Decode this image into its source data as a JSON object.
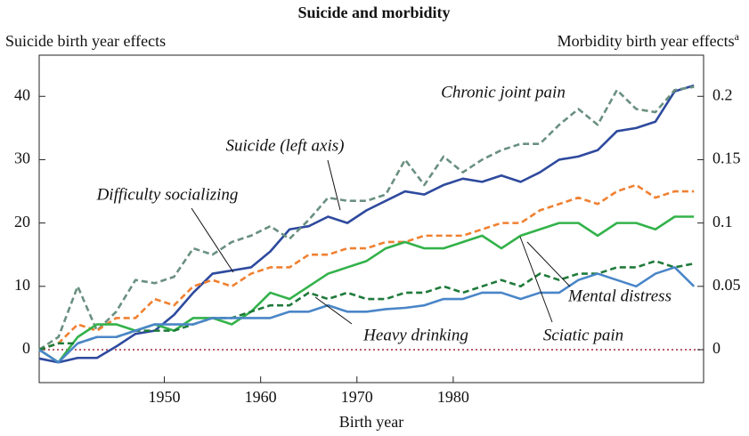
{
  "chart_data": {
    "type": "line",
    "title": "Suicide and morbidity",
    "ylabel": "Suicide birth year effects",
    "y2label": "Morbidity birth year effects",
    "y2label_note": "a",
    "xlabel": "Birth year",
    "x": [
      1937,
      1939,
      1941,
      1943,
      1945,
      1947,
      1949,
      1951,
      1953,
      1955,
      1957,
      1959,
      1961,
      1963,
      1965,
      1967,
      1969,
      1971,
      1973,
      1975,
      1977,
      1979,
      1981,
      1983,
      1985,
      1987,
      1989,
      1991,
      1993,
      1995,
      1997,
      1999,
      2001,
      2003,
      2005
    ],
    "xlim": [
      1937,
      2006
    ],
    "xticks": [
      1950,
      1960,
      1970,
      1980
    ],
    "ylim": [
      -5.2,
      46.5
    ],
    "yticks": [
      0,
      10,
      20,
      30,
      40
    ],
    "y2lim": [
      -0.026,
      0.2325
    ],
    "y2ticks": [
      0,
      0.05,
      0.1,
      0.15,
      0.2
    ],
    "series": [
      {
        "name": "Suicide (left axis)",
        "color": "#2e4a9e",
        "dash": false,
        "values": [
          -1.4,
          -2,
          -1.3,
          -1.3,
          0.5,
          2.5,
          3,
          5.5,
          9,
          12,
          12.5,
          13,
          15.5,
          19,
          19.5,
          21,
          20,
          22,
          23.5,
          25,
          24.5,
          26,
          27,
          26.5,
          27.5,
          26.5,
          28,
          30,
          30.5,
          31.5,
          34.5,
          35,
          36,
          40.8,
          41.7
        ]
      },
      {
        "name": "Chronic joint pain",
        "color": "#6a9080",
        "dash": true,
        "axis": "y2",
        "values": [
          0,
          0.01,
          0.05,
          0.015,
          0.03,
          0.055,
          0.0525,
          0.0575,
          0.08,
          0.075,
          0.085,
          0.09,
          0.0975,
          0.0875,
          0.1025,
          0.12,
          0.1175,
          0.1175,
          0.1225,
          0.15,
          0.13,
          0.1525,
          0.14,
          0.15,
          0.1575,
          0.1625,
          0.1625,
          0.1775,
          0.19,
          0.1775,
          0.205,
          0.19,
          0.1875,
          0.205,
          0.2075
        ]
      },
      {
        "name": "Difficulty socializing",
        "color": "#f08030",
        "dash": true,
        "axis": "y2",
        "values": [
          0,
          0.005,
          0.02,
          0.015,
          0.025,
          0.025,
          0.04,
          0.035,
          0.05,
          0.055,
          0.05,
          0.06,
          0.065,
          0.065,
          0.075,
          0.075,
          0.08,
          0.08,
          0.085,
          0.085,
          0.09,
          0.09,
          0.09,
          0.095,
          0.1,
          0.1,
          0.11,
          0.115,
          0.12,
          0.115,
          0.125,
          0.13,
          0.12,
          0.125,
          0.125
        ]
      },
      {
        "name": "Mental distress",
        "color": "#33b24a",
        "dash": false,
        "axis": "y2",
        "values": [
          0,
          -0.01,
          0.01,
          0.02,
          0.02,
          0.015,
          0.02,
          0.015,
          0.025,
          0.025,
          0.02,
          0.03,
          0.045,
          0.04,
          0.05,
          0.06,
          0.065,
          0.07,
          0.08,
          0.085,
          0.08,
          0.08,
          0.085,
          0.09,
          0.08,
          0.09,
          0.095,
          0.1,
          0.1,
          0.09,
          0.1,
          0.1,
          0.095,
          0.105,
          0.105
        ]
      },
      {
        "name": "Heavy drinking",
        "color": "#1e7a3a",
        "dash": true,
        "axis": "y2",
        "values": [
          0,
          0.005,
          0.005,
          0.01,
          0.01,
          0.015,
          0.015,
          0.015,
          0.02,
          0.025,
          0.025,
          0.03,
          0.035,
          0.035,
          0.045,
          0.04,
          0.045,
          0.04,
          0.04,
          0.045,
          0.045,
          0.05,
          0.045,
          0.05,
          0.055,
          0.05,
          0.06,
          0.055,
          0.06,
          0.06,
          0.065,
          0.065,
          0.07,
          0.065,
          0.068
        ]
      },
      {
        "name": "Sciatic pain",
        "color": "#4a86c8",
        "dash": false,
        "axis": "y2",
        "values": [
          0,
          -0.01,
          0.005,
          0.01,
          0.01,
          0.015,
          0.02,
          0.02,
          0.02,
          0.025,
          0.025,
          0.025,
          0.025,
          0.03,
          0.03,
          0.035,
          0.03,
          0.03,
          0.032,
          0.033,
          0.035,
          0.04,
          0.04,
          0.045,
          0.045,
          0.04,
          0.045,
          0.045,
          0.055,
          0.06,
          0.055,
          0.05,
          0.06,
          0.065,
          0.05
        ]
      }
    ]
  }
}
